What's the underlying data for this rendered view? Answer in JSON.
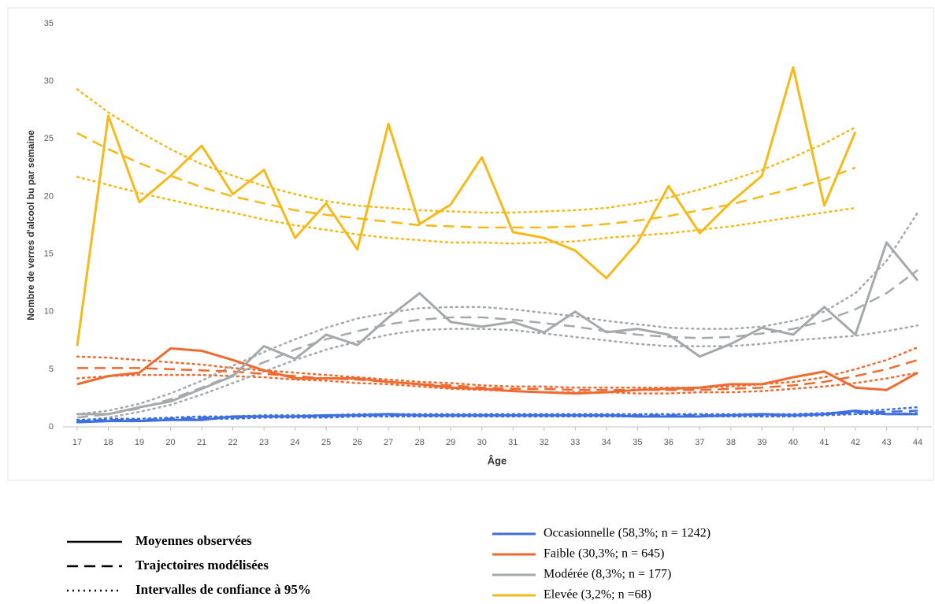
{
  "chart_data": {
    "type": "line",
    "y_label": "Nombre de verres d'alcool bu par semaine",
    "x_label": "Âge",
    "categories": [
      "17",
      "18",
      "19",
      "20",
      "21",
      "22",
      "23",
      "24",
      "25",
      "26",
      "27",
      "28",
      "29",
      "30",
      "31",
      "32",
      "33",
      "34",
      "35",
      "36",
      "37",
      "38",
      "39",
      "40",
      "41",
      "42",
      "43",
      "44"
    ],
    "ylim": [
      0,
      35
    ],
    "yticks": [
      0,
      5,
      10,
      15,
      20,
      25,
      30,
      35
    ],
    "line_styles": [
      {
        "name": "Moyennes observées",
        "dash": "solid"
      },
      {
        "name": "Trajectoires modélisées",
        "dash": "dashed"
      },
      {
        "name": "Intervalles de confiance à 95%",
        "dash": "dotted"
      }
    ],
    "series": [
      {
        "name": "Occasionnelle (58,3%; n = 1242)",
        "color": "#3d6fe0",
        "values": [
          0.4,
          0.5,
          0.5,
          0.6,
          0.6,
          0.9,
          0.9,
          0.9,
          1,
          1,
          1.1,
          1,
          1,
          1,
          1,
          1,
          1,
          1,
          0.9,
          0.9,
          0.9,
          1,
          1.1,
          1,
          1.1,
          1.4,
          1.1,
          1.1
        ],
        "modeled": [
          0.5,
          0.6,
          0.6,
          0.7,
          0.8,
          0.8,
          0.9,
          0.9,
          0.9,
          1,
          1,
          1,
          1,
          1,
          1,
          1,
          1,
          1,
          1,
          1,
          1,
          1,
          1,
          1,
          1.1,
          1.2,
          1.3,
          1.4
        ],
        "ci_high": [
          0.6,
          0.7,
          0.7,
          0.8,
          0.9,
          0.9,
          1,
          1,
          1,
          1.1,
          1.1,
          1.1,
          1.1,
          1.1,
          1.1,
          1.1,
          1.1,
          1.1,
          1.1,
          1.1,
          1.1,
          1.1,
          1.1,
          1.1,
          1.2,
          1.3,
          1.5,
          1.7
        ],
        "ci_low": [
          0.4,
          0.5,
          0.5,
          0.6,
          0.7,
          0.7,
          0.8,
          0.8,
          0.8,
          0.9,
          0.9,
          0.9,
          0.9,
          0.9,
          0.9,
          0.9,
          0.9,
          0.9,
          0.9,
          0.9,
          0.9,
          0.9,
          0.9,
          0.9,
          1,
          1.1,
          1.1,
          1.2
        ]
      },
      {
        "name": "Faible (30,3%;  n = 645)",
        "color": "#ef6a2e",
        "values": [
          3.7,
          4.4,
          4.7,
          6.8,
          6.6,
          5.8,
          4.9,
          4.2,
          4.2,
          4.2,
          3.9,
          3.7,
          3.4,
          3.3,
          3.1,
          3,
          2.9,
          3,
          3.2,
          3.3,
          3.4,
          3.7,
          3.7,
          4.3,
          4.8,
          3.4,
          3.2,
          4.7
        ],
        "modeled": [
          5.1,
          5.1,
          5.1,
          5,
          4.9,
          4.8,
          4.6,
          4.4,
          4.2,
          4.1,
          3.9,
          3.7,
          3.6,
          3.4,
          3.3,
          3.3,
          3.2,
          3.2,
          3.2,
          3.2,
          3.2,
          3.3,
          3.4,
          3.6,
          3.9,
          4.4,
          5,
          5.8
        ],
        "ci_high": [
          6.1,
          6,
          5.8,
          5.6,
          5.4,
          5.1,
          4.9,
          4.7,
          4.5,
          4.3,
          4.1,
          3.9,
          3.8,
          3.6,
          3.5,
          3.5,
          3.4,
          3.4,
          3.4,
          3.4,
          3.4,
          3.5,
          3.7,
          3.9,
          4.3,
          5,
          5.8,
          6.9
        ],
        "ci_low": [
          4.2,
          4.4,
          4.5,
          4.5,
          4.5,
          4.4,
          4.3,
          4.1,
          4,
          3.8,
          3.7,
          3.5,
          3.3,
          3.2,
          3.1,
          3,
          3,
          3,
          2.9,
          2.9,
          3,
          3,
          3.1,
          3.3,
          3.5,
          3.8,
          4.2,
          4.7
        ]
      },
      {
        "name": "Modérée (8,3%; n = 177)",
        "color": "#a5a9ab",
        "values": [
          1.1,
          1.1,
          1.7,
          2.2,
          3.3,
          4.4,
          7,
          5.9,
          8,
          7.1,
          9.5,
          11.6,
          9.1,
          8.7,
          9.1,
          8.2,
          10,
          8.2,
          8.5,
          8,
          6.1,
          7.2,
          8.6,
          8,
          10.4,
          8,
          16,
          12.7
        ],
        "modeled": [
          0.8,
          1.1,
          1.6,
          2.4,
          3.4,
          4.5,
          5.6,
          6.7,
          7.6,
          8.3,
          8.9,
          9.3,
          9.5,
          9.5,
          9.3,
          9,
          8.7,
          8.3,
          8,
          7.8,
          7.7,
          7.8,
          8.1,
          8.5,
          9.2,
          10.2,
          11.6,
          13.6
        ],
        "ci_high": [
          1.1,
          1.4,
          2,
          2.9,
          4,
          5.3,
          6.5,
          7.6,
          8.6,
          9.4,
          9.9,
          10.3,
          10.4,
          10.4,
          10.2,
          9.9,
          9.6,
          9.2,
          8.9,
          8.6,
          8.5,
          8.5,
          8.7,
          9.2,
          10,
          11.6,
          14.4,
          18.6
        ],
        "ci_low": [
          0.5,
          0.8,
          1.3,
          1.9,
          2.8,
          3.8,
          4.8,
          5.8,
          6.7,
          7.4,
          8,
          8.4,
          8.5,
          8.5,
          8.4,
          8.1,
          7.8,
          7.5,
          7.2,
          7,
          7,
          7,
          7.2,
          7.5,
          7.7,
          7.9,
          8.3,
          8.8
        ]
      },
      {
        "name": "Elevée (3,2%; n =68)",
        "color": "#f7b917",
        "values": [
          7,
          27,
          19.5,
          21.8,
          24.4,
          20.2,
          22.3,
          16.4,
          19.4,
          15.4,
          26.3,
          17.6,
          19.3,
          23.4,
          16.9,
          16.4,
          15.3,
          12.9,
          16,
          20.9,
          16.8,
          19.5,
          21.8,
          31.2,
          19.2,
          25.6,
          null,
          null
        ],
        "modeled": [
          25.5,
          24.1,
          22.9,
          21.8,
          20.8,
          20,
          19.4,
          18.8,
          18.4,
          18.1,
          17.8,
          17.5,
          17.4,
          17.3,
          17.3,
          17.3,
          17.4,
          17.6,
          17.9,
          18.3,
          18.8,
          19.3,
          20,
          20.7,
          21.5,
          22.5,
          null,
          null
        ],
        "ci_high": [
          29.3,
          27.3,
          25.6,
          24.1,
          22.8,
          21.8,
          20.9,
          20.2,
          19.6,
          19.2,
          19,
          18.8,
          18.7,
          18.6,
          18.6,
          18.7,
          18.8,
          19,
          19.4,
          19.9,
          20.6,
          21.4,
          22.3,
          23.4,
          24.6,
          26,
          null,
          null
        ],
        "ci_low": [
          21.7,
          21,
          20.3,
          19.7,
          19.1,
          18.6,
          18,
          17.5,
          17.1,
          16.7,
          16.4,
          16.2,
          16,
          16,
          15.9,
          16,
          16.1,
          16.4,
          16.6,
          16.8,
          17.1,
          17.4,
          17.8,
          18.2,
          18.6,
          19,
          null,
          null
        ]
      }
    ]
  }
}
